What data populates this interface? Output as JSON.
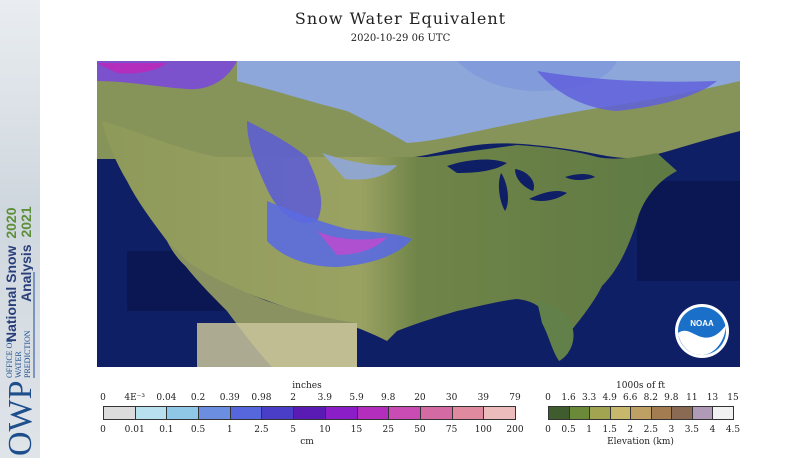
{
  "header": {
    "title": "Snow Water Equivalent",
    "timestamp": "2020-10-29 06 UTC"
  },
  "sidebar": {
    "product_line1": "National Snow",
    "product_line2": "Analysis",
    "season_line1": "2020",
    "season_line2": "2021",
    "org_short": "OWP",
    "org_line1": "OFFICE OF",
    "org_line2": "WATER",
    "org_line3": "PREDICTION"
  },
  "logo": {
    "text": "NOAA"
  },
  "swe_legend": {
    "top_unit": "inches",
    "bottom_unit": "cm",
    "inches_ticks": [
      "0",
      "4E⁻³",
      "0.04",
      "0.2",
      "0.39",
      "0.98",
      "2",
      "3.9",
      "5.9",
      "9.8",
      "20",
      "30",
      "39",
      "79"
    ],
    "cm_ticks": [
      "0",
      "0.01",
      "0.1",
      "0.5",
      "1",
      "2.5",
      "5",
      "10",
      "15",
      "25",
      "50",
      "75",
      "100",
      "200"
    ],
    "colors": [
      "#dcdcdc",
      "#b8e0ee",
      "#8ec8e6",
      "#6c8ee0",
      "#5666dc",
      "#4a3ec8",
      "#5a1ab4",
      "#8c1ec8",
      "#b42ebe",
      "#c84cb4",
      "#d46aa4",
      "#e08aa0",
      "#ecbcbc"
    ]
  },
  "elev_legend": {
    "top_unit": "1000s of ft",
    "bottom_unit": "Elevation (km)",
    "ft_ticks": [
      "0",
      "1.6",
      "3.3",
      "4.9",
      "6.6",
      "8.2",
      "9.8",
      "11",
      "13",
      "15"
    ],
    "km_ticks": [
      "0",
      "0.5",
      "1",
      "1.5",
      "2",
      "2.5",
      "3",
      "3.5",
      "4",
      "4.5"
    ],
    "colors": [
      "#3e5c2e",
      "#6a8a3a",
      "#a2a452",
      "#c8b86c",
      "#bea064",
      "#a47c52",
      "#8a6a52",
      "#b09ab8",
      "#f2f2f2"
    ]
  }
}
